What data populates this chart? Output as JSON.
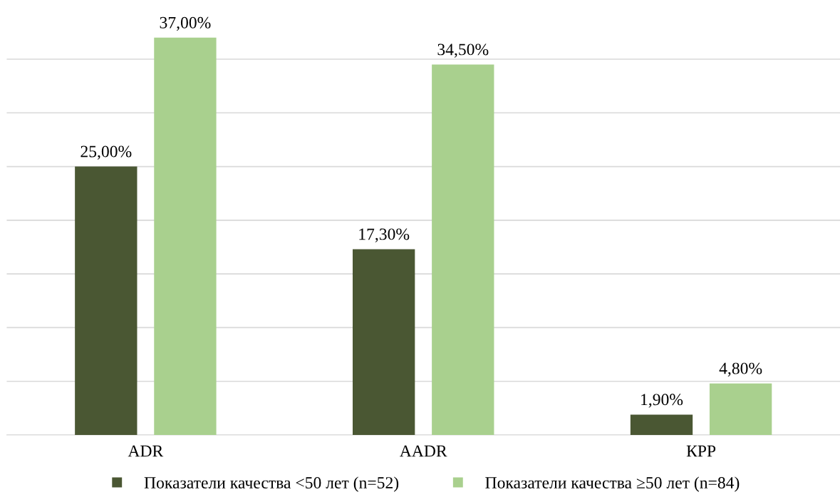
{
  "chart_data": {
    "type": "bar",
    "categories": [
      "ADR",
      "AADR",
      "КРР"
    ],
    "series": [
      {
        "name": "Показатели качества <50 лет (n=52)",
        "color": "#4a5733",
        "values": [
          25.0,
          17.3,
          1.9
        ],
        "value_labels": [
          "25,00%",
          "17,30%",
          "1,90%"
        ]
      },
      {
        "name": "Показатели качества ≥50 лет (n=84)",
        "color": "#a9d08e",
        "values": [
          37.0,
          34.5,
          4.8
        ],
        "value_labels": [
          "37,00%",
          "34,50%",
          "4,80%"
        ]
      }
    ],
    "yticks": [
      {
        "value": 0,
        "label": null
      },
      {
        "value": 5,
        "label": null
      },
      {
        "value": 10,
        "label": null
      },
      {
        "value": 15,
        "label": null
      },
      {
        "value": 20,
        "label": null
      },
      {
        "value": 25,
        "label": null
      },
      {
        "value": 30,
        "label": null
      },
      {
        "value": 35,
        "label": null
      }
    ],
    "tick_labels": "x",
    "grid": "y",
    "legend": "bottom"
  }
}
